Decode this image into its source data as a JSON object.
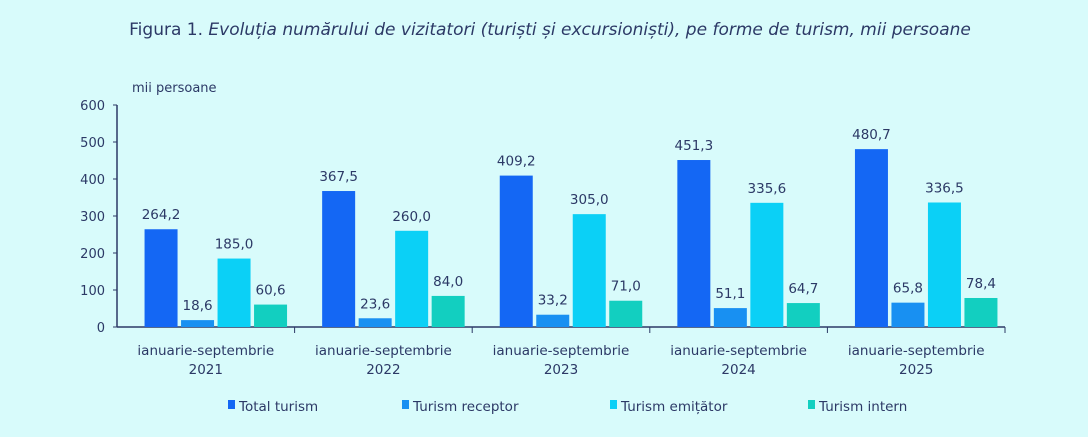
{
  "chart_data": {
    "type": "bar",
    "title_prefix": "Figura 1.",
    "title": "Evoluția numărului de vizitatori (turiști și excursioniști), pe forme de turism, mii persoane",
    "ylabel": "mii persoane",
    "xlabel": "",
    "ylim": [
      0,
      600
    ],
    "yticks": [
      0,
      100,
      200,
      300,
      400,
      500,
      600
    ],
    "categories": [
      [
        "ianuarie-septembrie",
        "2021"
      ],
      [
        "ianuarie-septembrie",
        "2022"
      ],
      [
        "ianuarie-septembrie",
        "2023"
      ],
      [
        "ianuarie-septembrie",
        "2024"
      ],
      [
        "ianuarie-septembrie",
        "2025"
      ]
    ],
    "series": [
      {
        "name": "Total turism",
        "color": "#1467f4",
        "values": [
          264.2,
          367.5,
          409.2,
          451.3,
          480.7
        ],
        "labels": [
          "264,2",
          "367,5",
          "409,2",
          "451,3",
          "480,7"
        ]
      },
      {
        "name": "Turism receptor",
        "color": "#1890f2",
        "values": [
          18.6,
          23.6,
          33.2,
          51.1,
          65.8
        ],
        "labels": [
          "18,6",
          "23,6",
          "33,2",
          "51,1",
          "65,8"
        ]
      },
      {
        "name": "Turism emițător",
        "color": "#0bd0f6",
        "values": [
          185.0,
          260.0,
          305.0,
          335.6,
          336.5
        ],
        "labels": [
          "185,0",
          "260,0",
          "305,0",
          "335,6",
          "336,5"
        ]
      },
      {
        "name": "Turism intern",
        "color": "#12cfc0",
        "values": [
          60.6,
          84.0,
          71.0,
          64.7,
          78.4
        ],
        "labels": [
          "60,6",
          "84,0",
          "71,0",
          "64,7",
          "78,4"
        ]
      }
    ],
    "grid": false,
    "legend": "bottom"
  }
}
